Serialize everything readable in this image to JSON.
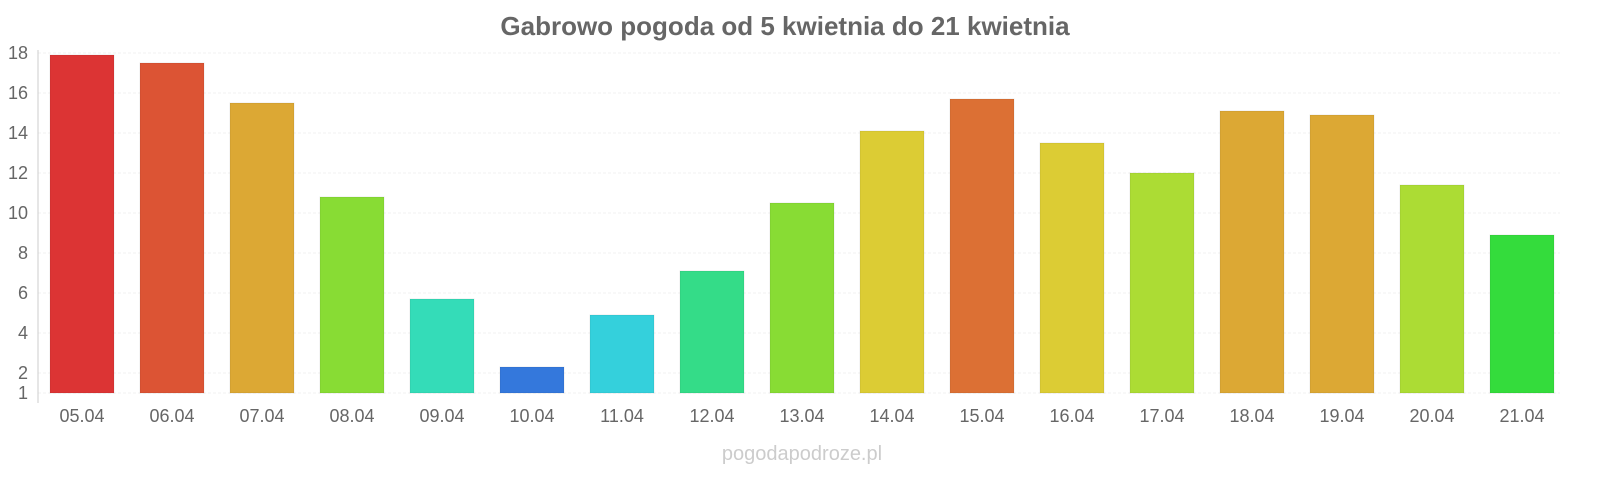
{
  "chart_data": {
    "type": "bar",
    "title": "Gabrowo pogoda od 5 kwietnia do 21 kwietnia",
    "xlabel": "",
    "ylabel": "",
    "ylim": [
      1,
      18
    ],
    "y_ticks": [
      1,
      2,
      4,
      6,
      8,
      10,
      12,
      14,
      16,
      18
    ],
    "grid": true,
    "categories": [
      "05.04",
      "06.04",
      "07.04",
      "08.04",
      "09.04",
      "10.04",
      "11.04",
      "12.04",
      "13.04",
      "14.04",
      "15.04",
      "16.04",
      "17.04",
      "18.04",
      "19.04",
      "20.04",
      "21.04"
    ],
    "values": [
      17.9,
      17.5,
      15.5,
      10.8,
      5.7,
      2.3,
      4.9,
      7.1,
      10.5,
      14.1,
      15.7,
      13.5,
      12,
      15.1,
      14.9,
      11.4,
      8.9
    ],
    "colors": [
      "#dc3434",
      "#dc5434",
      "#dca834",
      "#88dc34",
      "#34dcb8",
      "#3478dc",
      "#34d0dc",
      "#34dc88",
      "#88dc34",
      "#dccc34",
      "#dc7034",
      "#dccc34",
      "#acdc34",
      "#dca834",
      "#dca834",
      "#acdc34",
      "#34dc3c"
    ]
  },
  "watermark": "pogodapodroze.pl"
}
